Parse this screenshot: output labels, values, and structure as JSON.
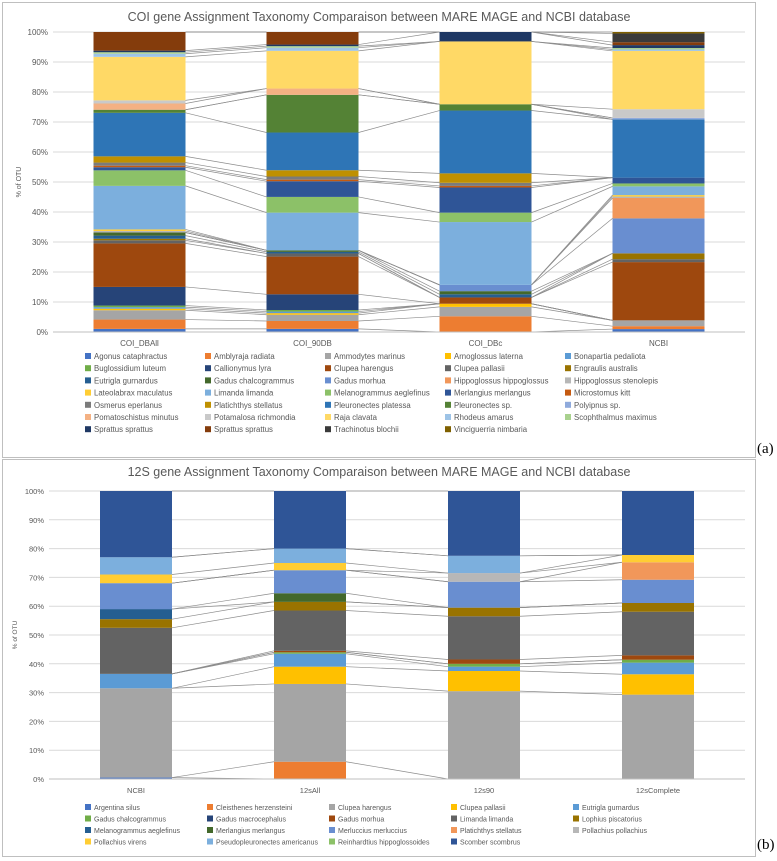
{
  "chart_data": [
    {
      "type": "bar",
      "stacked": true,
      "title": "COI gene Assignment Taxonomy Comparaison between MARE MAGE and NCBI database",
      "ylabel": "% of OTU",
      "xlabel": "",
      "ylim": [
        0,
        100
      ],
      "y_ticks": [
        "0%",
        "10%",
        "20%",
        "30%",
        "40%",
        "50%",
        "60%",
        "70%",
        "80%",
        "90%",
        "100%"
      ],
      "categories": [
        "COI_DBAll",
        "COI_90DB",
        "COI_DBc",
        "NCBI"
      ],
      "legend_position": "bottom",
      "series_lines": true,
      "series": [
        {
          "name": "Agonus cataphractus",
          "color": "#4472c4",
          "values": [
            1,
            1,
            0,
            1
          ]
        },
        {
          "name": "Amblyraja radiata",
          "color": "#ed7d31",
          "values": [
            3,
            2.5,
            5,
            1
          ]
        },
        {
          "name": "Ammodytes marinus",
          "color": "#a5a5a5",
          "values": [
            3,
            2,
            3,
            2
          ]
        },
        {
          "name": "Arnoglossus laterna",
          "color": "#ffc000",
          "values": [
            0.5,
            0.5,
            1,
            0
          ]
        },
        {
          "name": "Bonapartia pedaliota",
          "color": "#5b9bd5",
          "values": [
            0.5,
            0.5,
            0,
            0
          ]
        },
        {
          "name": "Buglossidium luteum",
          "color": "#70ad47",
          "values": [
            0.5,
            0.5,
            0,
            0
          ]
        },
        {
          "name": "Callionymus lyra",
          "color": "#264478",
          "values": [
            6,
            5,
            0,
            0
          ]
        },
        {
          "name": "Clupea harengus",
          "color": "#9e480e",
          "values": [
            14,
            12,
            2,
            20
          ]
        },
        {
          "name": "Clupea pallasii",
          "color": "#636363",
          "values": [
            1,
            1,
            0,
            1
          ]
        },
        {
          "name": "Engraulis australis",
          "color": "#997300",
          "values": [
            0.5,
            0,
            0,
            2
          ]
        },
        {
          "name": "Eutrigla gurnardus",
          "color": "#255e91",
          "values": [
            1,
            0.5,
            1,
            0
          ]
        },
        {
          "name": "Gadus chalcogrammus",
          "color": "#43682b",
          "values": [
            1,
            0.5,
            1,
            0
          ]
        },
        {
          "name": "Gadus morhua",
          "color": "#698ed0",
          "values": [
            0,
            0,
            2,
            12
          ]
        },
        {
          "name": "Hippoglossus hippoglossus",
          "color": "#f1975a",
          "values": [
            0,
            0,
            0,
            7
          ]
        },
        {
          "name": "Hippoglossus stenolepis",
          "color": "#b7b7b7",
          "values": [
            0.5,
            0,
            0,
            0.5
          ]
        },
        {
          "name": "Lateolabrax maculatus",
          "color": "#ffcd33",
          "values": [
            0.5,
            0,
            0,
            0.5
          ]
        },
        {
          "name": "Limanda limanda",
          "color": "#7cafdd",
          "values": [
            14,
            12,
            20,
            3
          ]
        },
        {
          "name": "Melanogrammus aeglefinus",
          "color": "#8cc168",
          "values": [
            5,
            5,
            3,
            1
          ]
        },
        {
          "name": "Merlangius merlangus",
          "color": "#2f5597",
          "values": [
            1,
            5,
            8,
            2
          ]
        },
        {
          "name": "Microstomus kitt",
          "color": "#c55a11",
          "values": [
            0.5,
            0.5,
            0.5,
            0
          ]
        },
        {
          "name": "Osmerus eperlanus",
          "color": "#7b7b7b",
          "values": [
            1,
            1,
            1,
            0
          ]
        },
        {
          "name": "Platichthys stellatus",
          "color": "#bf9000",
          "values": [
            2,
            2,
            3,
            0
          ]
        },
        {
          "name": "Pleuronectes platessa",
          "color": "#2e75b6",
          "values": [
            14,
            12,
            20,
            20
          ]
        },
        {
          "name": "Pleuronectes sp.",
          "color": "#548235",
          "values": [
            1,
            12,
            2,
            0
          ]
        },
        {
          "name": "Polyipnus sp.",
          "color": "#8faadc",
          "values": [
            0,
            0,
            0,
            0.5
          ]
        },
        {
          "name": "Pomatoschistus minutus",
          "color": "#f4b183",
          "values": [
            2,
            2,
            0,
            0
          ]
        },
        {
          "name": "Potamalosa richmondia",
          "color": "#c9c9c9",
          "values": [
            1,
            0,
            0,
            3
          ]
        },
        {
          "name": "Raja clavata",
          "color": "#ffd966",
          "values": [
            14,
            12,
            20,
            20
          ]
        },
        {
          "name": "Rhodeus amarus",
          "color": "#9dc3e6",
          "values": [
            1,
            1,
            0,
            0.5
          ]
        },
        {
          "name": "Scophthalmus maximus",
          "color": "#a9d18e",
          "values": [
            0.5,
            0.5,
            0,
            0.5
          ]
        },
        {
          "name": "Sprattus sprattus",
          "color": "#1f3864",
          "values": [
            0.5,
            0.5,
            3,
            1
          ]
        },
        {
          "name": "Sprattus sprattus",
          "color": "#843c0c",
          "values": [
            6,
            4,
            0,
            1
          ]
        },
        {
          "name": "Trachinotus blochii",
          "color": "#3a3a3a",
          "values": [
            0,
            0,
            0,
            3
          ]
        },
        {
          "name": "Vinciguerria nimbaria",
          "color": "#7f6000",
          "values": [
            0,
            0,
            0,
            0.5
          ]
        }
      ]
    },
    {
      "type": "bar",
      "stacked": true,
      "title": "12S gene Assignment Taxonomy Comparaison between MARE MAGE and NCBI database",
      "ylabel": "% of OTU",
      "xlabel": "",
      "ylim": [
        0,
        100
      ],
      "y_ticks": [
        "0%",
        "10%",
        "20%",
        "30%",
        "40%",
        "50%",
        "60%",
        "70%",
        "80%",
        "90%",
        "100%"
      ],
      "categories": [
        "NCBI",
        "12sAll",
        "12s90",
        "12sComplete"
      ],
      "legend_position": "bottom",
      "series_lines": true,
      "series": [
        {
          "name": "Argentina silus",
          "color": "#4472c4",
          "values": [
            0.5,
            0,
            0,
            0
          ]
        },
        {
          "name": "Cleisthenes herzensteini",
          "color": "#ed7d31",
          "values": [
            0,
            6,
            0,
            0
          ]
        },
        {
          "name": "Clupea harengus",
          "color": "#a5a5a5",
          "values": [
            31,
            27,
            30.5,
            29
          ]
        },
        {
          "name": "Clupea pallasii",
          "color": "#ffc000",
          "values": [
            0,
            6,
            7,
            7
          ]
        },
        {
          "name": "Eutrigla gurnardus",
          "color": "#5b9bd5",
          "values": [
            5,
            4.5,
            1.5,
            4
          ]
        },
        {
          "name": "Gadus chalcogrammus",
          "color": "#70ad47",
          "values": [
            0,
            0.5,
            1,
            1
          ]
        },
        {
          "name": "Gadus macrocephalus",
          "color": "#264478",
          "values": [
            0,
            0,
            0,
            0
          ]
        },
        {
          "name": "Gadus morhua",
          "color": "#9e480e",
          "values": [
            0,
            0.5,
            1.5,
            1.5
          ]
        },
        {
          "name": "Limanda limanda",
          "color": "#636363",
          "values": [
            16,
            14,
            15,
            15
          ]
        },
        {
          "name": "Lophius piscatorius",
          "color": "#997300",
          "values": [
            3,
            3,
            3,
            3
          ]
        },
        {
          "name": "Melanogrammus aeglefinus",
          "color": "#255e91",
          "values": [
            3.5,
            0,
            0,
            0
          ]
        },
        {
          "name": "Merlangius merlangus",
          "color": "#43682b",
          "values": [
            0,
            3,
            0,
            0
          ]
        },
        {
          "name": "Merluccius merluccius",
          "color": "#698ed0",
          "values": [
            9,
            8,
            9,
            8
          ]
        },
        {
          "name": "Platichthys stellatus",
          "color": "#f1975a",
          "values": [
            0,
            0,
            0,
            6
          ]
        },
        {
          "name": "Pollachius pollachius",
          "color": "#b7b7b7",
          "values": [
            0,
            0,
            3,
            0
          ]
        },
        {
          "name": "Pollachius virens",
          "color": "#ffcd33",
          "values": [
            3,
            2.5,
            0,
            2.5
          ]
        },
        {
          "name": "Pseudopleuronectes americanus",
          "color": "#7cafdd",
          "values": [
            6,
            5,
            6,
            0
          ]
        },
        {
          "name": "Reinhardtius hippoglossoides",
          "color": "#8cc168",
          "values": [
            0,
            0,
            0,
            0
          ]
        },
        {
          "name": "Scomber scombrus",
          "color": "#2f5597",
          "values": [
            23,
            20,
            22.5,
            22
          ]
        }
      ]
    }
  ],
  "panel_labels": [
    "(a)",
    "(b)"
  ]
}
